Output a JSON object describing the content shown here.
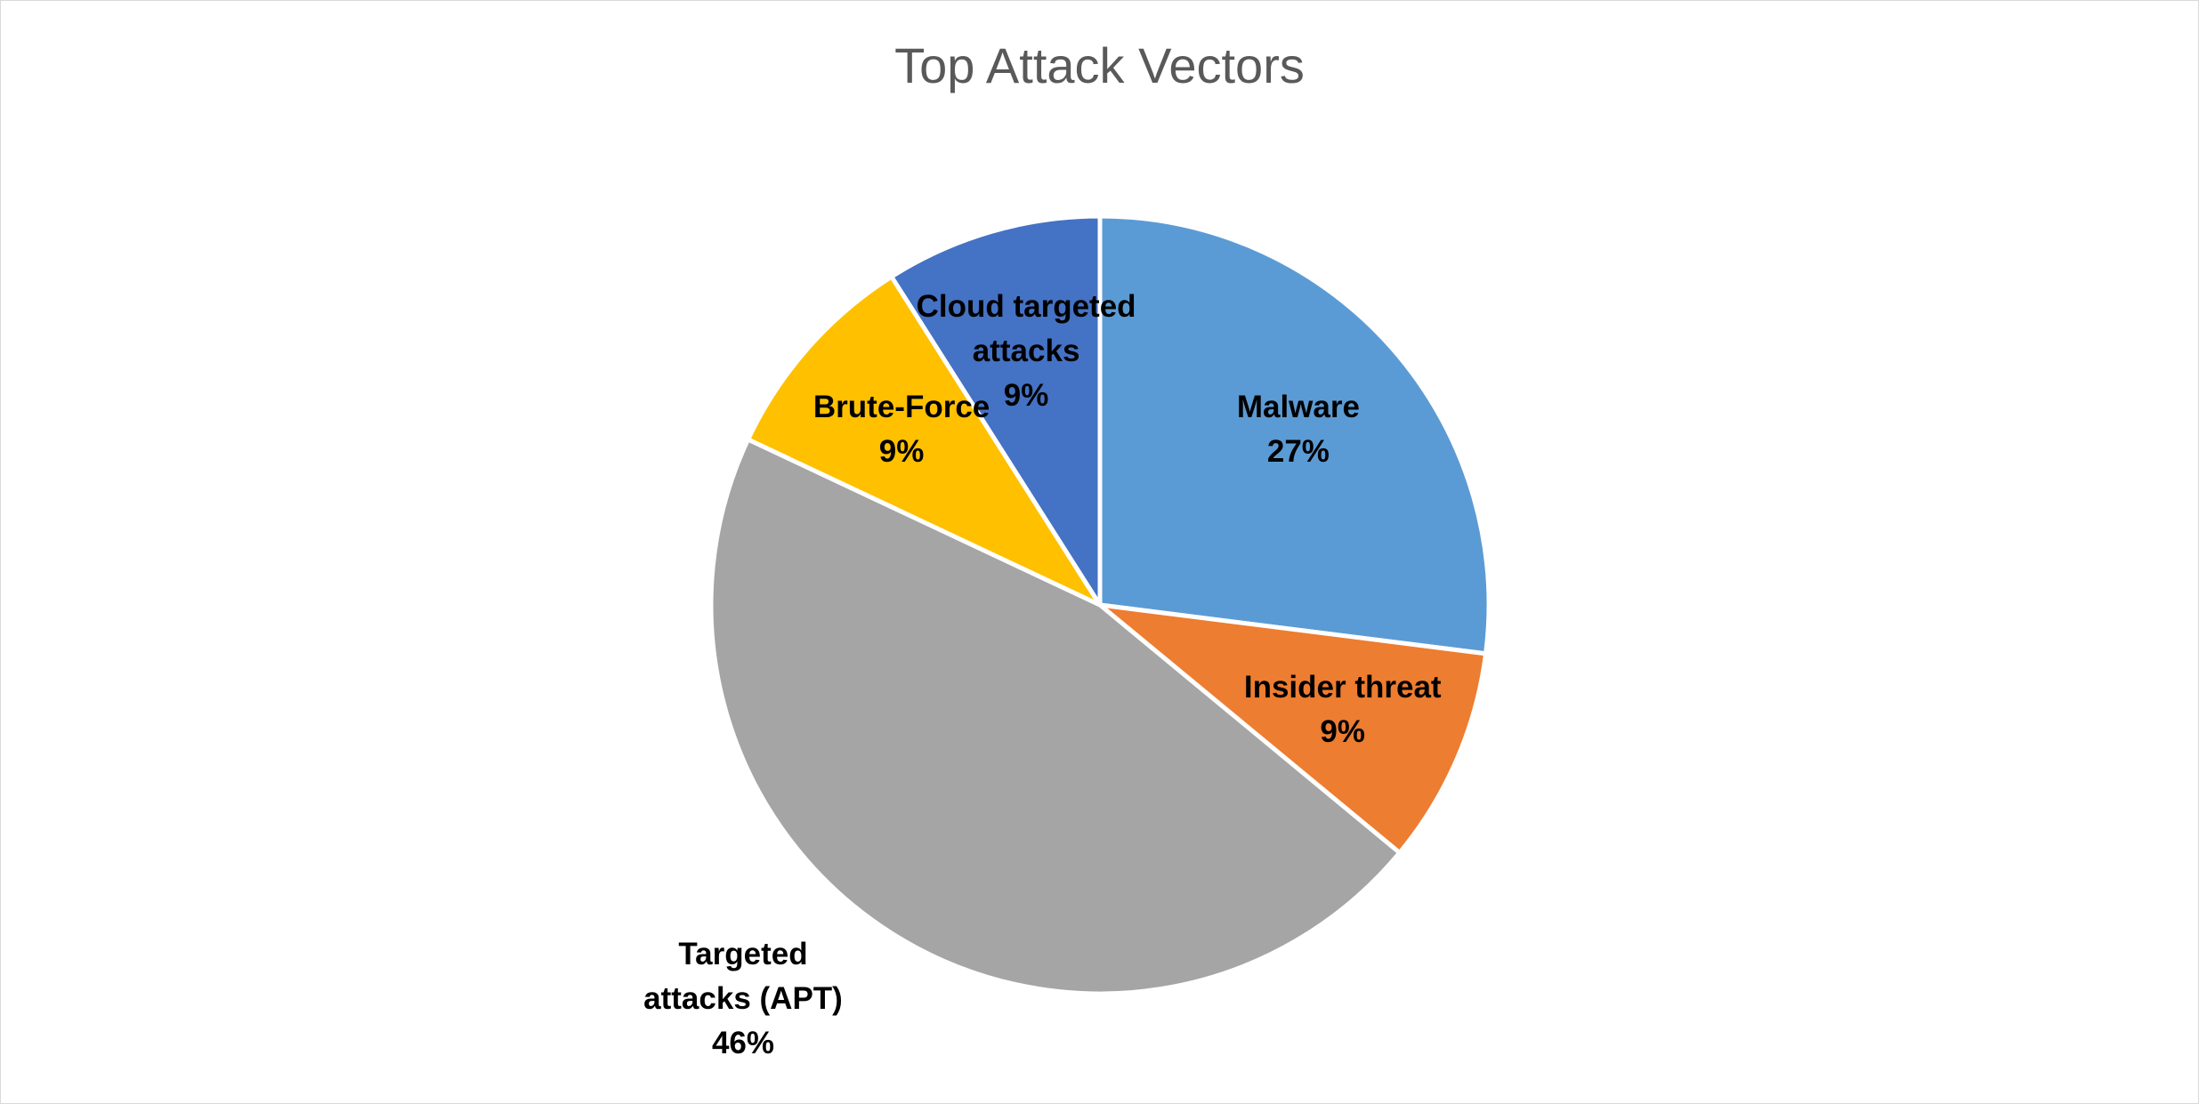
{
  "chart_data": {
    "type": "pie",
    "title": "Top Attack Vectors",
    "categories": [
      "Malware",
      "Insider threat",
      "Targeted attacks (APT)",
      "Brute-Force",
      "Cloud targeted attacks"
    ],
    "values": [
      27,
      9,
      46,
      9,
      9
    ],
    "value_labels": [
      "27%",
      "9%",
      "46%",
      "9%",
      "9%"
    ],
    "colors": [
      "#5b9bd5",
      "#ed7d31",
      "#a5a5a5",
      "#ffc000",
      "#4472c4"
    ]
  }
}
